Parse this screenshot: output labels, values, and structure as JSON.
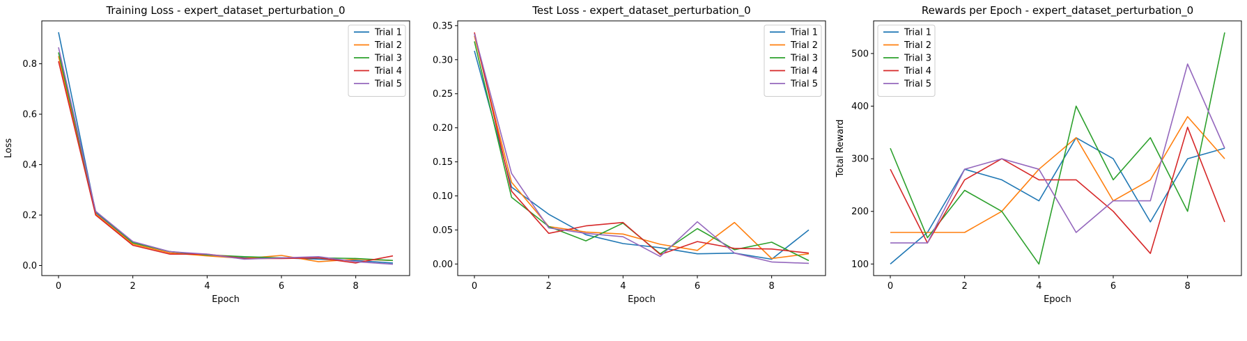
{
  "colors": {
    "series": [
      "#1f77b4",
      "#ff7f0e",
      "#2ca02c",
      "#d62728",
      "#9467bd"
    ]
  },
  "chart_data": [
    {
      "type": "line",
      "title": "Training Loss - expert_dataset_perturbation_0",
      "xlabel": "Epoch",
      "ylabel": "Loss",
      "xlim": [
        -0.45,
        9.45
      ],
      "ylim": [
        -0.04,
        0.97
      ],
      "xticks": [
        0,
        2,
        4,
        6,
        8
      ],
      "yticks": [
        0.0,
        0.2,
        0.4,
        0.6,
        0.8
      ],
      "ytick_labels": [
        "0.0",
        "0.2",
        "0.4",
        "0.6",
        "0.8"
      ],
      "legend_position": "top-right",
      "x": [
        0,
        1,
        2,
        3,
        4,
        5,
        6,
        7,
        8,
        9
      ],
      "series": [
        {
          "name": "Trial 1",
          "values": [
            0.925,
            0.21,
            0.09,
            0.055,
            0.04,
            0.03,
            0.03,
            0.025,
            0.02,
            0.01
          ]
        },
        {
          "name": "Trial 2",
          "values": [
            0.83,
            0.205,
            0.085,
            0.05,
            0.038,
            0.028,
            0.04,
            0.015,
            0.025,
            0.02
          ]
        },
        {
          "name": "Trial 3",
          "values": [
            0.845,
            0.215,
            0.09,
            0.055,
            0.042,
            0.035,
            0.03,
            0.03,
            0.028,
            0.02
          ]
        },
        {
          "name": "Trial 4",
          "values": [
            0.81,
            0.2,
            0.08,
            0.045,
            0.045,
            0.028,
            0.028,
            0.03,
            0.01,
            0.038
          ]
        },
        {
          "name": "Trial 5",
          "values": [
            0.865,
            0.215,
            0.095,
            0.055,
            0.045,
            0.025,
            0.03,
            0.035,
            0.015,
            0.005
          ]
        }
      ]
    },
    {
      "type": "line",
      "title": "Test Loss - expert_dataset_perturbation_0",
      "xlabel": "Epoch",
      "ylabel": "",
      "xlim": [
        -0.45,
        9.45
      ],
      "ylim": [
        -0.017,
        0.357
      ],
      "xticks": [
        0,
        2,
        4,
        6,
        8
      ],
      "yticks": [
        0.0,
        0.05,
        0.1,
        0.15,
        0.2,
        0.25,
        0.3,
        0.35
      ],
      "ytick_labels": [
        "0.00",
        "0.05",
        "0.10",
        "0.15",
        "0.20",
        "0.25",
        "0.30",
        "0.35"
      ],
      "legend_position": "top-right",
      "x": [
        0,
        1,
        2,
        3,
        4,
        5,
        6,
        7,
        8,
        9
      ],
      "series": [
        {
          "name": "Trial 1",
          "values": [
            0.313,
            0.113,
            0.073,
            0.043,
            0.03,
            0.024,
            0.015,
            0.016,
            0.007,
            0.05
          ]
        },
        {
          "name": "Trial 2",
          "values": [
            0.335,
            0.12,
            0.055,
            0.047,
            0.044,
            0.029,
            0.02,
            0.061,
            0.008,
            0.015
          ]
        },
        {
          "name": "Trial 3",
          "values": [
            0.327,
            0.098,
            0.055,
            0.034,
            0.06,
            0.015,
            0.052,
            0.021,
            0.032,
            0.005
          ]
        },
        {
          "name": "Trial 4",
          "values": [
            0.34,
            0.107,
            0.045,
            0.056,
            0.061,
            0.014,
            0.033,
            0.023,
            0.022,
            0.016
          ]
        },
        {
          "name": "Trial 5",
          "values": [
            0.338,
            0.133,
            0.053,
            0.045,
            0.04,
            0.011,
            0.062,
            0.016,
            0.003,
            0.001
          ]
        }
      ]
    },
    {
      "type": "line",
      "title": "Rewards per Epoch - expert_dataset_perturbation_0",
      "xlabel": "Epoch",
      "ylabel": "Total Reward",
      "xlim": [
        -0.45,
        9.45
      ],
      "ylim": [
        78,
        562
      ],
      "xticks": [
        0,
        2,
        4,
        6,
        8
      ],
      "yticks": [
        100,
        200,
        300,
        400,
        500
      ],
      "ytick_labels": [
        "100",
        "200",
        "300",
        "400",
        "500"
      ],
      "legend_position": "top-left",
      "x": [
        0,
        1,
        2,
        3,
        4,
        5,
        6,
        7,
        8,
        9
      ],
      "series": [
        {
          "name": "Trial 1",
          "values": [
            100,
            160,
            280,
            260,
            220,
            340,
            300,
            180,
            300,
            320
          ]
        },
        {
          "name": "Trial 2",
          "values": [
            160,
            160,
            160,
            200,
            280,
            340,
            220,
            260,
            380,
            300
          ]
        },
        {
          "name": "Trial 3",
          "values": [
            320,
            150,
            240,
            200,
            100,
            400,
            260,
            340,
            200,
            540
          ]
        },
        {
          "name": "Trial 4",
          "values": [
            280,
            140,
            260,
            300,
            260,
            260,
            200,
            120,
            360,
            180
          ]
        },
        {
          "name": "Trial 5",
          "values": [
            140,
            140,
            280,
            300,
            280,
            160,
            220,
            220,
            480,
            320
          ]
        }
      ]
    }
  ]
}
